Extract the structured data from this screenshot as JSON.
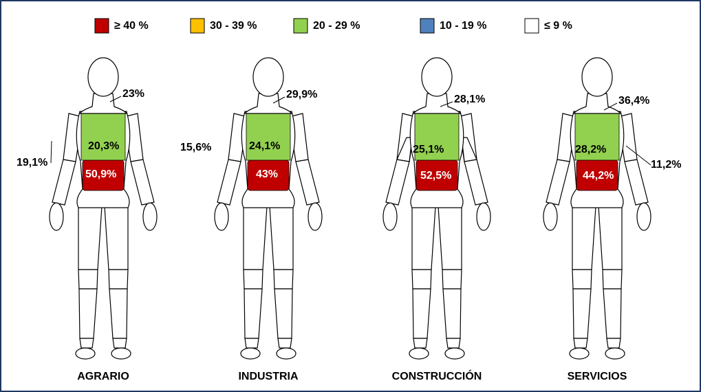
{
  "legend": [
    {
      "label": "≥ 40 %",
      "color": "#c00000"
    },
    {
      "label": "30 - 39 %",
      "color": "#ffc000"
    },
    {
      "label": "20 - 29 %",
      "color": "#92d050"
    },
    {
      "label": "10 - 19 %",
      "color": "#4f81bd"
    },
    {
      "label": "≤ 9 %",
      "color": "#ffffff"
    }
  ],
  "figures": [
    {
      "name": "AGRARIO",
      "neck": "23%",
      "upper_back": "20,3%",
      "lower_back": "50,9%",
      "arms": "19,1%"
    },
    {
      "name": "INDUSTRIA",
      "neck": "29,9%",
      "upper_back": "24,1%",
      "lower_back": "43%",
      "arms": "15,6%"
    },
    {
      "name": "CONSTRUCCIÓN",
      "neck": "28,1%",
      "upper_back": "25,1%",
      "lower_back": "52,5%"
    },
    {
      "name": "SERVICIOS",
      "neck": "36,4%",
      "upper_back": "28,2%",
      "lower_back": "44,2%",
      "arms": "11,2%"
    }
  ]
}
